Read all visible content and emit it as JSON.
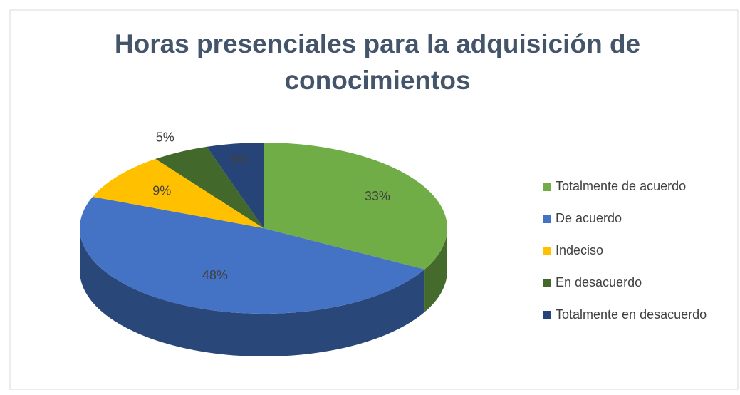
{
  "chart_data": {
    "type": "pie3d",
    "title": "Horas presenciales para la adquisición de conocimientos",
    "categories": [
      "Totalmente de acuerdo",
      "De acuerdo",
      "Indeciso",
      "En desacuerdo",
      "Totalmente en desacuerdo"
    ],
    "values": [
      33,
      48,
      9,
      5,
      5
    ],
    "value_labels": [
      "33%",
      "48%",
      "9%",
      "5%",
      "5%"
    ],
    "colors": [
      "#70ad47",
      "#4472c4",
      "#ffc000",
      "#43682b",
      "#264478"
    ],
    "legend": "right"
  }
}
